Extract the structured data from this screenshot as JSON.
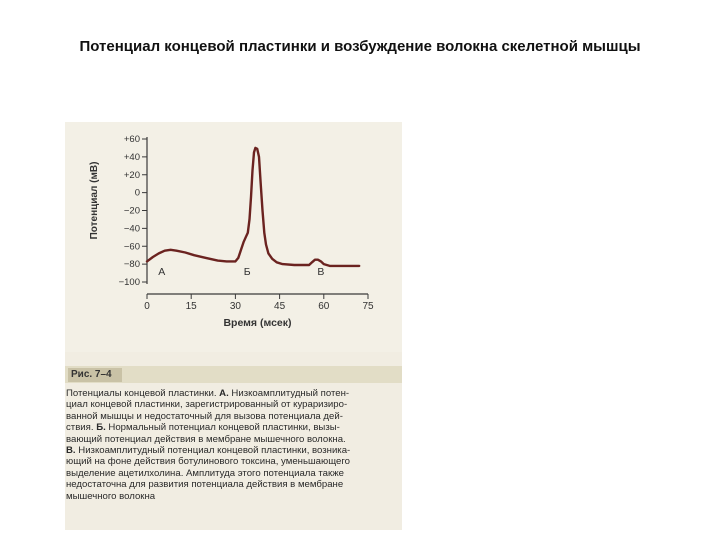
{
  "slide": {
    "title": "Потенциал концевой пластинки и возбуждение волокна скелетной мышцы"
  },
  "figure": {
    "label": "Рис. 7–4",
    "caption_lines": [
      [
        {
          "t": "Потенциалы концевой пластинки. "
        },
        {
          "t": "А.",
          "b": true
        },
        {
          "t": " Низкоамплитудный потен-"
        }
      ],
      [
        {
          "t": "циал концевой пластинки, зарегистрированный от кураризиро-"
        }
      ],
      [
        {
          "t": "ванной мышцы и недостаточный для вызова потенциала дей-"
        }
      ],
      [
        {
          "t": "ствия. "
        },
        {
          "t": "Б.",
          "b": true
        },
        {
          "t": " Нормальный потенциал концевой пластинки, вызы-"
        }
      ],
      [
        {
          "t": "вающий потенциал действия в мембране мышечного волокна."
        }
      ],
      [
        {
          "t": "В.",
          "b": true
        },
        {
          "t": " Низкоамплитудный потенциал концевой пластинки, возника-"
        }
      ],
      [
        {
          "t": "ющий на фоне действия ботулинового токсина, уменьшающего"
        }
      ],
      [
        {
          "t": "выделение ацетилхолина. Амплитуда этого потенциала также"
        }
      ],
      [
        {
          "t": "недостаточна для развития потенциала действия в мембране"
        }
      ],
      [
        {
          "t": "мышечного волокна"
        }
      ]
    ]
  },
  "chart_data": {
    "type": "line",
    "title": "",
    "xlabel": "Время (мсек)",
    "ylabel": "Потенциал (мВ)",
    "xlim": [
      0,
      75
    ],
    "ylim": [
      -100,
      60
    ],
    "x_ticks": [
      0,
      15,
      30,
      45,
      60,
      75
    ],
    "x_tick_labels": [
      "0",
      "15",
      "30",
      "45",
      "60",
      "75"
    ],
    "y_ticks": [
      60,
      40,
      20,
      0,
      -20,
      -40,
      -60,
      -80,
      -100
    ],
    "y_tick_labels": [
      "+60",
      "+40",
      "+20",
      "0",
      "−20",
      "−40",
      "−60",
      "−80",
      "−100"
    ],
    "grid": false,
    "line_color": "#6b2320",
    "annotations": [
      {
        "text": "А",
        "x": 5,
        "y": -92
      },
      {
        "text": "Б",
        "x": 34,
        "y": -92
      },
      {
        "text": "В",
        "x": 59,
        "y": -92
      }
    ],
    "series": [
      {
        "points": [
          [
            0,
            -77
          ],
          [
            2,
            -72
          ],
          [
            4,
            -68
          ],
          [
            6,
            -65
          ],
          [
            8,
            -64
          ],
          [
            10,
            -65
          ],
          [
            13,
            -67
          ],
          [
            16,
            -70
          ],
          [
            20,
            -73
          ],
          [
            24,
            -76
          ],
          [
            27,
            -77
          ],
          [
            30,
            -77
          ],
          [
            31,
            -73
          ],
          [
            32,
            -63
          ],
          [
            32.8,
            -55
          ],
          [
            33.5,
            -50
          ],
          [
            34.2,
            -45
          ],
          [
            34.8,
            -30
          ],
          [
            35.3,
            -5
          ],
          [
            35.8,
            25
          ],
          [
            36.3,
            45
          ],
          [
            36.8,
            50
          ],
          [
            37.4,
            49
          ],
          [
            38,
            40
          ],
          [
            38.6,
            10
          ],
          [
            39.2,
            -20
          ],
          [
            39.8,
            -45
          ],
          [
            40.4,
            -58
          ],
          [
            41.2,
            -68
          ],
          [
            42.5,
            -74
          ],
          [
            44,
            -78
          ],
          [
            46,
            -80
          ],
          [
            50,
            -81
          ],
          [
            55,
            -81
          ],
          [
            56,
            -78
          ],
          [
            57,
            -75
          ],
          [
            58,
            -75
          ],
          [
            59,
            -77
          ],
          [
            60,
            -80
          ],
          [
            62,
            -82
          ],
          [
            65,
            -82
          ],
          [
            72,
            -82
          ]
        ]
      }
    ]
  }
}
